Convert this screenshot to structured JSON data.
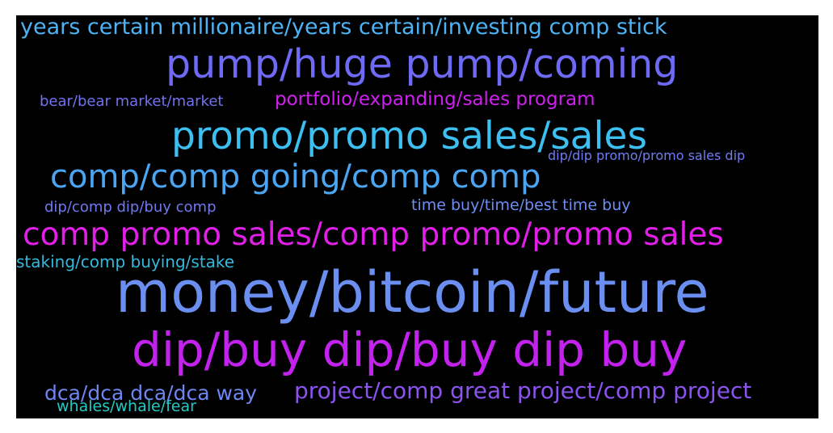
{
  "words": [
    {
      "text": "years certain millionaire/years certain/investing comp stick",
      "color": "#4eb3f4"
    },
    {
      "text": "pump/huge pump/coming",
      "color": "#6e6af5"
    },
    {
      "text": "bear/bear market/market",
      "color": "#7073f1"
    },
    {
      "text": "portfolio/expanding/sales program",
      "color": "#d21ef2"
    },
    {
      "text": "promo/promo sales/sales",
      "color": "#3cc0f2"
    },
    {
      "text": "dip/dip promo/promo sales dip",
      "color": "#6f7cf3"
    },
    {
      "text": "comp/comp going/comp comp",
      "color": "#4aa6f3"
    },
    {
      "text": "dip/comp dip/buy comp",
      "color": "#6f79f1"
    },
    {
      "text": "time buy/time/best time buy",
      "color": "#6f8ef3"
    },
    {
      "text": "comp promo sales/comp promo/promo sales",
      "color": "#e21fe9"
    },
    {
      "text": "staking/comp buying/stake",
      "color": "#36b8dd"
    },
    {
      "text": "money/bitcoin/future",
      "color": "#6b8ff1"
    },
    {
      "text": "dip/buy dip/buy dip buy",
      "color": "#c322ee"
    },
    {
      "text": "dca/dca dca/dca way",
      "color": "#6e86f2"
    },
    {
      "text": "project/comp great project/comp project",
      "color": "#8b53f0"
    },
    {
      "text": "whales/whale/fear",
      "color": "#22c9c6"
    }
  ]
}
